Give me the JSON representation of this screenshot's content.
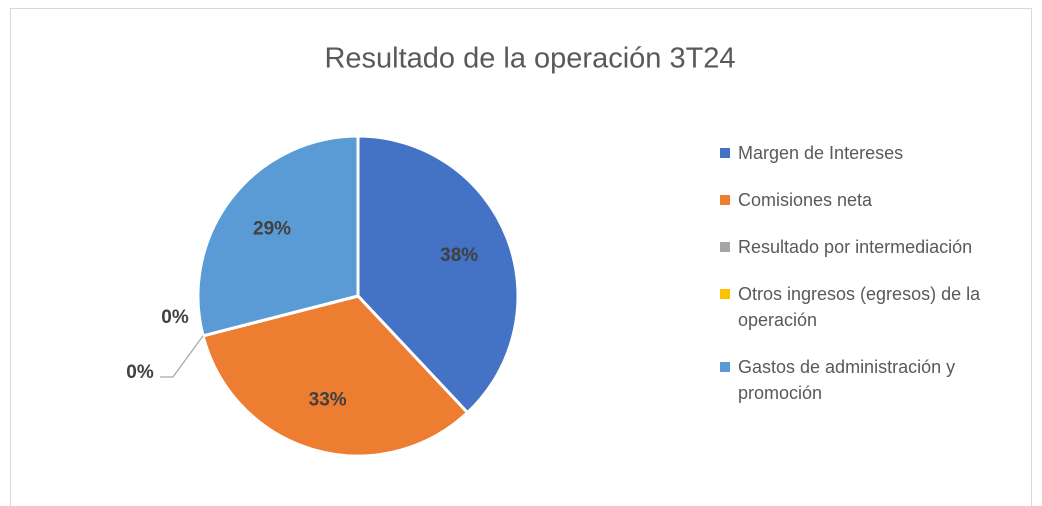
{
  "chart_data": {
    "type": "pie",
    "title": "Resultado de la operación 3T24",
    "categories": [
      "Margen de Intereses",
      "Comisiones neta",
      "Resultado por intermediación",
      "Otros ingresos (egresos) de la operación",
      "Gastos de administración y promoción"
    ],
    "values": [
      38,
      33,
      0,
      0,
      29
    ],
    "value_labels": [
      "38%",
      "33%",
      "0%",
      "0%",
      "29%"
    ],
    "colors": [
      "#4472c4",
      "#ed7d31",
      "#a5a5a5",
      "#ffc000",
      "#5b9bd5"
    ],
    "legend": "right"
  }
}
